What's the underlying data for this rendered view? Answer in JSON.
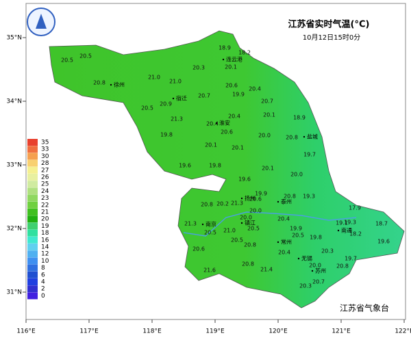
{
  "title": "江苏省实时气温(°C)",
  "subtitle": "10月12日15时0分",
  "agency": "江苏省气象台",
  "axes": {
    "x_ticks": [
      {
        "value": 116,
        "label": "116°E"
      },
      {
        "value": 117,
        "label": "117°E"
      },
      {
        "value": 118,
        "label": "118°E"
      },
      {
        "value": 119,
        "label": "119°E"
      },
      {
        "value": 120,
        "label": "120°E"
      },
      {
        "value": 121,
        "label": "121°E"
      },
      {
        "value": 122,
        "label": "122°E"
      }
    ],
    "y_ticks": [
      {
        "value": 35,
        "label": "35°N"
      },
      {
        "value": 34,
        "label": "34°N"
      },
      {
        "value": 33,
        "label": "33°N"
      },
      {
        "value": 32,
        "label": "32°N"
      },
      {
        "value": 31,
        "label": "31°N"
      }
    ]
  },
  "legend": {
    "items": [
      {
        "value": 35,
        "color": "#e8412e"
      },
      {
        "value": 33,
        "color": "#f07040"
      },
      {
        "value": 30,
        "color": "#f5a050"
      },
      {
        "value": 28,
        "color": "#f8d070"
      },
      {
        "value": 27,
        "color": "#f5f090"
      },
      {
        "value": 26,
        "color": "#e8f0a0"
      },
      {
        "value": 25,
        "color": "#d0eba0"
      },
      {
        "value": 24,
        "color": "#b0e080"
      },
      {
        "value": 23,
        "color": "#90d860"
      },
      {
        "value": 22,
        "color": "#70d040"
      },
      {
        "value": 21,
        "color": "#40c020"
      },
      {
        "value": 20,
        "color": "#20b010"
      },
      {
        "value": 19,
        "color": "#40d070"
      },
      {
        "value": 18,
        "color": "#30e0a0"
      },
      {
        "value": 16,
        "color": "#40e8d0"
      },
      {
        "value": 14,
        "color": "#60d0f0"
      },
      {
        "value": 12,
        "color": "#50b0f0"
      },
      {
        "value": 10,
        "color": "#4090f0"
      },
      {
        "value": 8,
        "color": "#3070e0"
      },
      {
        "value": 6,
        "color": "#2050d0"
      },
      {
        "value": 4,
        "color": "#2040e0"
      },
      {
        "value": 2,
        "color": "#3030d0"
      },
      {
        "value": 0,
        "color": "#4020e0"
      }
    ]
  },
  "cities": [
    "连云港",
    "徐州",
    "宿迁",
    "淮安",
    "盐城",
    "扬州",
    "泰州",
    "南京",
    "镇江",
    "常州",
    "南通",
    "无锡",
    "苏州"
  ],
  "stations": [
    "18.9",
    "18.2",
    "20.5",
    "20.5",
    "20.3",
    "20.1",
    "21.0",
    "21.0",
    "20.8",
    "20.6",
    "20.4",
    "19.9",
    "20.7",
    "20.9",
    "20.7",
    "20.5",
    "21.3",
    "20.4",
    "20.1",
    "18.9",
    "20.4",
    "20.6",
    "19.8",
    "20.0",
    "20.8",
    "20.1",
    "20.1",
    "19.7",
    "19.6",
    "19.8",
    "20.1",
    "20.0",
    "19.6",
    "19.9",
    "20.8",
    "19.3",
    "20.8",
    "20.2",
    "21.3",
    "20.6",
    "20.0",
    "20.4",
    "17.9",
    "20.0",
    "19.3",
    "19.1",
    "18.7",
    "21.3",
    "20.5",
    "21.0",
    "20.5",
    "19.9",
    "20.5",
    "19.8",
    "18.2",
    "19.6",
    "20.5",
    "20.8",
    "20.6",
    "20.4",
    "20.3",
    "19.7",
    "20.0",
    "20.8",
    "20.8",
    "21.6",
    "21.4",
    "20.7",
    "20.3"
  ]
}
